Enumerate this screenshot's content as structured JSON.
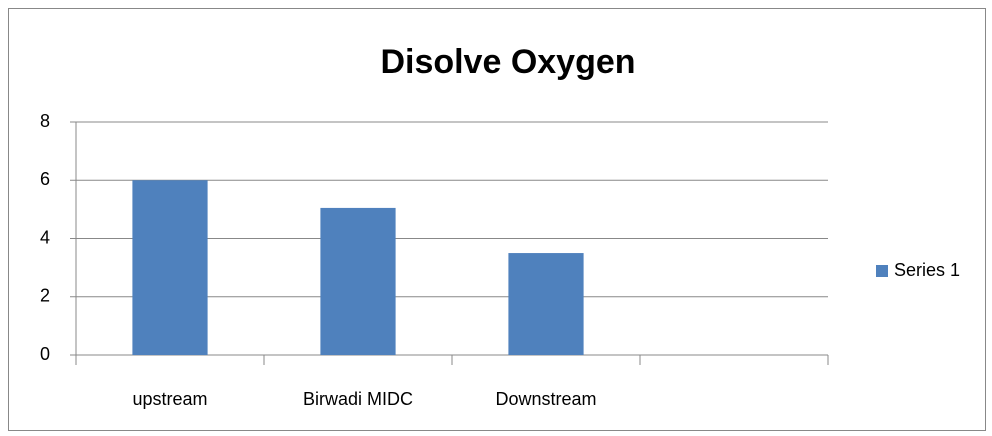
{
  "chart_data": {
    "type": "bar",
    "title": "Disolve Oxygen",
    "categories": [
      "upstream",
      "Birwadi MIDC",
      "Downstream",
      null
    ],
    "series": [
      {
        "name": "Series 1",
        "color": "#4f81bd",
        "values": [
          6,
          5.05,
          3.5,
          null
        ]
      }
    ],
    "ylim": [
      0,
      8
    ],
    "yticks": [
      0,
      2,
      4,
      6,
      8
    ],
    "grid": true,
    "legend": "right"
  }
}
